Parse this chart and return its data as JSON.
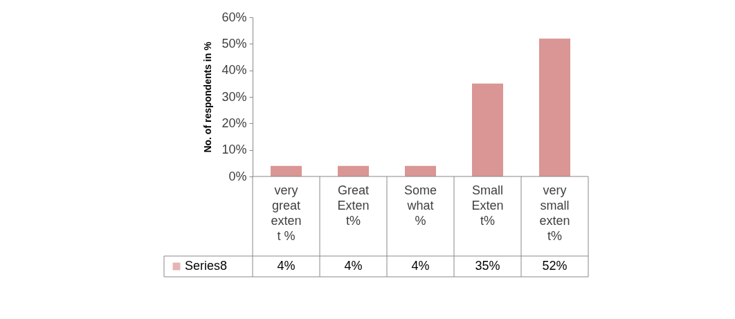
{
  "chart_data": {
    "type": "bar",
    "ylabel": "No. of respondents in %",
    "categories": [
      "very great extent %",
      "Great Extent%",
      "Some what %",
      "Small Extent%",
      "very small extent%"
    ],
    "series": [
      {
        "name": "Series8",
        "color": "#d99694",
        "values": [
          4,
          4,
          4,
          35,
          52
        ],
        "value_labels": [
          "4%",
          "4%",
          "4%",
          "35%",
          "52%"
        ]
      }
    ],
    "ylim": [
      0,
      60
    ],
    "yticks": [
      {
        "value": 0,
        "label": "0%"
      },
      {
        "value": 10,
        "label": "10%"
      },
      {
        "value": 20,
        "label": "20%"
      },
      {
        "value": 30,
        "label": "30%"
      },
      {
        "value": 40,
        "label": "40%"
      },
      {
        "value": 50,
        "label": "50%"
      },
      {
        "value": 60,
        "label": "60%"
      }
    ],
    "grid": false
  }
}
